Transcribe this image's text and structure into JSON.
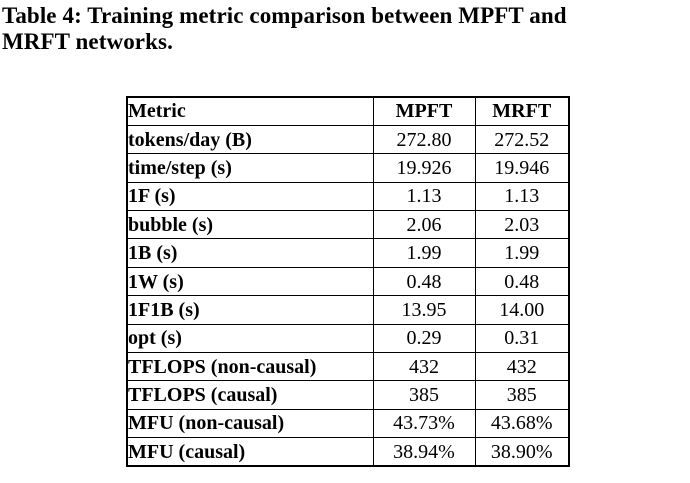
{
  "caption": {
    "full_text": "Table 4: Training metric comparison between MPFT and MRFT networks.",
    "lines": [
      "Table 4: Training metric comparison between MPFT and",
      "MRFT networks."
    ]
  },
  "table": {
    "columns": [
      "Metric",
      "MPFT",
      "MRFT"
    ],
    "rows": [
      {
        "metric": "tokens/day (B)",
        "values": [
          "272.80",
          "272.52"
        ]
      },
      {
        "metric": "time/step (s)",
        "values": [
          "19.926",
          "19.946"
        ]
      },
      {
        "metric": "1F (s)",
        "values": [
          "1.13",
          "1.13"
        ]
      },
      {
        "metric": "bubble (s)",
        "values": [
          "2.06",
          "2.03"
        ]
      },
      {
        "metric": "1B (s)",
        "values": [
          "1.99",
          "1.99"
        ]
      },
      {
        "metric": "1W (s)",
        "values": [
          "0.48",
          "0.48"
        ]
      },
      {
        "metric": "1F1B (s)",
        "values": [
          "13.95",
          "14.00"
        ]
      },
      {
        "metric": "opt (s)",
        "values": [
          "0.29",
          "0.31"
        ]
      },
      {
        "metric": "TFLOPS (non-causal)",
        "values": [
          "432",
          "432"
        ]
      },
      {
        "metric": "TFLOPS (causal)",
        "values": [
          "385",
          "385"
        ]
      },
      {
        "metric": "MFU (non-causal)",
        "values": [
          "43.73%",
          "43.68%"
        ]
      },
      {
        "metric": "MFU (causal)",
        "values": [
          "38.94%",
          "38.90%"
        ]
      }
    ]
  },
  "colors": {
    "text": "#000000",
    "background": "#ffffff",
    "border": "#000000"
  }
}
